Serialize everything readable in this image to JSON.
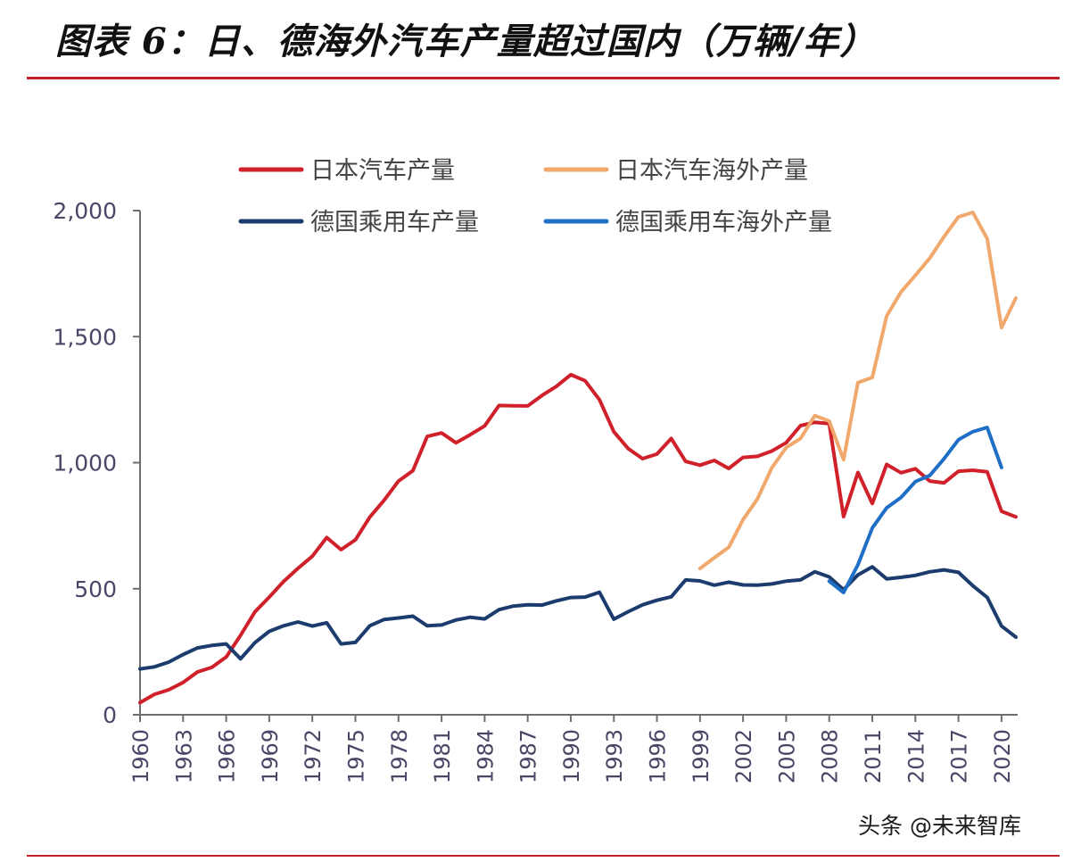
{
  "title": "图表 6：日、德海外汽车产量超过国内（万辆/年）",
  "watermark": "头条 @未来智库",
  "chart_data": {
    "type": "line",
    "ylim": [
      0,
      2000
    ],
    "yticks": [
      0,
      500,
      1000,
      1500,
      2000
    ],
    "ytick_labels": [
      "0",
      "500",
      "1,000",
      "1,500",
      "2,000"
    ],
    "xlim": [
      1960,
      2021
    ],
    "xticks": [
      1960,
      1963,
      1966,
      1969,
      1972,
      1975,
      1978,
      1981,
      1984,
      1987,
      1990,
      1993,
      1996,
      1999,
      2002,
      2005,
      2008,
      2011,
      2014,
      2017,
      2020
    ],
    "grid": false,
    "legend_position": "top",
    "series": [
      {
        "name": "日本汽车产量",
        "color": "#d0202a",
        "x": [
          1960,
          1961,
          1962,
          1963,
          1964,
          1965,
          1966,
          1967,
          1968,
          1969,
          1970,
          1971,
          1972,
          1973,
          1974,
          1975,
          1976,
          1977,
          1978,
          1979,
          1980,
          1981,
          1982,
          1983,
          1984,
          1985,
          1986,
          1987,
          1988,
          1989,
          1990,
          1991,
          1992,
          1993,
          1994,
          1995,
          1996,
          1997,
          1998,
          1999,
          2000,
          2001,
          2002,
          2003,
          2004,
          2005,
          2006,
          2007,
          2008,
          2009,
          2010,
          2011,
          2012,
          2013,
          2014,
          2015,
          2016,
          2017,
          2018,
          2019,
          2020,
          2021
        ],
        "y": [
          48,
          81,
          99,
          128,
          170,
          188,
          229,
          315,
          408,
          467,
          529,
          581,
          629,
          703,
          655,
          694,
          784,
          851,
          927,
          968,
          1104,
          1118,
          1079,
          1111,
          1146,
          1227,
          1226,
          1225,
          1267,
          1303,
          1349,
          1325,
          1250,
          1123,
          1056,
          1016,
          1034,
          1096,
          1005,
          990,
          1009,
          977,
          1021,
          1025,
          1046,
          1079,
          1147,
          1160,
          1155,
          786,
          961,
          838,
          993,
          960,
          976,
          927,
          920,
          966,
          970,
          964,
          807,
          785
        ]
      },
      {
        "name": "日本汽车海外产量",
        "color": "#f0a86c",
        "x": [
          1999,
          2000,
          2001,
          2002,
          2003,
          2004,
          2005,
          2006,
          2007,
          2008,
          2009,
          2010,
          2011,
          2012,
          2013,
          2014,
          2015,
          2016,
          2017,
          2018,
          2019,
          2020,
          2021
        ],
        "y": [
          580,
          623,
          664,
          774,
          856,
          979,
          1060,
          1096,
          1187,
          1165,
          1012,
          1318,
          1338,
          1582,
          1677,
          1743,
          1811,
          1897,
          1975,
          1993,
          1889,
          1536,
          1653
        ]
      },
      {
        "name": "德国乘用车产量",
        "color": "#1c3c6e",
        "x": [
          1960,
          1961,
          1962,
          1963,
          1964,
          1965,
          1966,
          1967,
          1968,
          1969,
          1970,
          1971,
          1972,
          1973,
          1974,
          1975,
          1976,
          1977,
          1978,
          1979,
          1980,
          1981,
          1982,
          1983,
          1984,
          1985,
          1986,
          1987,
          1988,
          1989,
          1990,
          1991,
          1992,
          1993,
          1994,
          1995,
          1996,
          1997,
          1998,
          1999,
          2000,
          2001,
          2002,
          2003,
          2004,
          2005,
          2006,
          2007,
          2008,
          2009,
          2010,
          2011,
          2012,
          2013,
          2014,
          2015,
          2016,
          2017,
          2018,
          2019,
          2020,
          2021
        ],
        "y": [
          182,
          190,
          209,
          239,
          265,
          275,
          281,
          222,
          286,
          331,
          353,
          368,
          352,
          365,
          281,
          287,
          353,
          378,
          384,
          391,
          353,
          356,
          376,
          387,
          380,
          417,
          431,
          436,
          435,
          452,
          465,
          467,
          486,
          379,
          409,
          436,
          454,
          468,
          535,
          531,
          514,
          526,
          515,
          514,
          519,
          530,
          535,
          567,
          547,
          496,
          555,
          587,
          539,
          545,
          553,
          567,
          575,
          565,
          512,
          466,
          352,
          308
        ]
      },
      {
        "name": "德国乘用车海外产量",
        "color": "#1f6fc6",
        "x": [
          2008,
          2009,
          2010,
          2011,
          2012,
          2013,
          2014,
          2015,
          2016,
          2017,
          2018,
          2019,
          2020
        ],
        "y": [
          530,
          485,
          595,
          741,
          821,
          862,
          925,
          949,
          1016,
          1091,
          1123,
          1140,
          981
        ]
      }
    ]
  }
}
